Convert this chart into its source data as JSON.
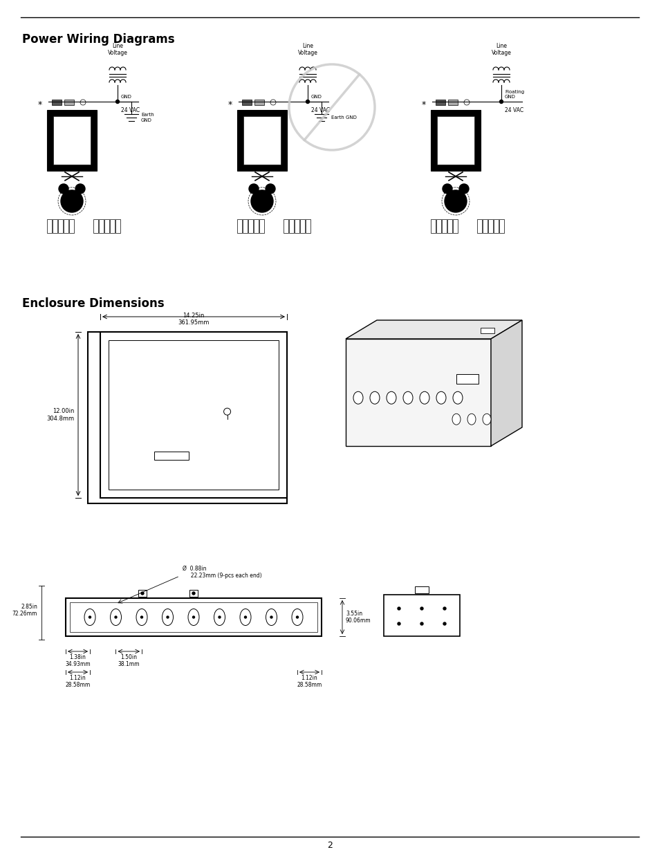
{
  "page_title_top": "Power Wiring Diagrams",
  "section2_title": "Enclosure Dimensions",
  "page_number": "2",
  "bg_color": "#ffffff",
  "diagram1_labels": {
    "line_voltage": "Line\nVoltage",
    "gnd": "GND",
    "vac": "24 VAC",
    "earth_gnd": "Earth\nGND",
    "has_earth": true
  },
  "diagram2_labels": {
    "line_voltage": "Line\nVoltage",
    "gnd": "GND",
    "vac": "24 VAC",
    "earth_gnd": "Earth GND",
    "has_earth": true,
    "has_prohibition": true
  },
  "diagram3_labels": {
    "line_voltage": "Line\nVoltage",
    "gnd": "Floating\nGND",
    "vac": "24 VAC",
    "earth_gnd": "",
    "has_earth": false
  },
  "enclosure_dims": {
    "width_label": "14.25in\n361.95mm",
    "height_label": "12.00in\n304.8mm",
    "hole_label": "Ø  0.88in\n     22.23mm (9-pcs each end)",
    "dim1": "2.85in\n72.26mm",
    "dim2": "1.38in\n34.93mm",
    "dim3": "1.50in\n38.1mm",
    "dim4": "1.12in\n28.58mm",
    "dim5": "1.12in\n28.58mm",
    "dim6": "3.55in\n90.06mm"
  }
}
